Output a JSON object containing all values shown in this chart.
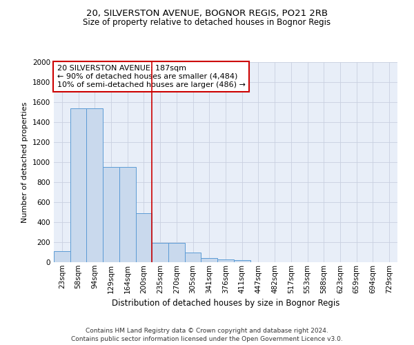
{
  "title1": "20, SILVERSTON AVENUE, BOGNOR REGIS, PO21 2RB",
  "title2": "Size of property relative to detached houses in Bognor Regis",
  "xlabel": "Distribution of detached houses by size in Bognor Regis",
  "ylabel": "Number of detached properties",
  "annotation_line1": "20 SILVERSTON AVENUE: 187sqm",
  "annotation_line2": "← 90% of detached houses are smaller (4,484)",
  "annotation_line3": "10% of semi-detached houses are larger (486) →",
  "bar_labels": [
    "23sqm",
    "58sqm",
    "94sqm",
    "129sqm",
    "164sqm",
    "200sqm",
    "235sqm",
    "270sqm",
    "305sqm",
    "341sqm",
    "376sqm",
    "411sqm",
    "447sqm",
    "482sqm",
    "517sqm",
    "553sqm",
    "588sqm",
    "623sqm",
    "659sqm",
    "694sqm",
    "729sqm"
  ],
  "bar_values": [
    110,
    1540,
    1540,
    950,
    950,
    490,
    190,
    190,
    100,
    40,
    30,
    20,
    0,
    0,
    0,
    0,
    0,
    0,
    0,
    0,
    0
  ],
  "bar_color": "#c9d9ed",
  "bar_edge_color": "#5b9bd5",
  "background_color": "#e8eef8",
  "grid_color": "#c8d0e0",
  "vline_x": 5.5,
  "vline_color": "#cc0000",
  "ylim": [
    0,
    2000
  ],
  "yticks": [
    0,
    200,
    400,
    600,
    800,
    1000,
    1200,
    1400,
    1600,
    1800,
    2000
  ],
  "annotation_box_color": "#cc0000",
  "footnote": "Contains HM Land Registry data © Crown copyright and database right 2024.\nContains public sector information licensed under the Open Government Licence v3.0.",
  "title1_fontsize": 9.5,
  "title2_fontsize": 8.5,
  "xlabel_fontsize": 8.5,
  "ylabel_fontsize": 8,
  "ann_fontsize": 8,
  "tick_fontsize": 7.5,
  "footnote_fontsize": 6.5
}
